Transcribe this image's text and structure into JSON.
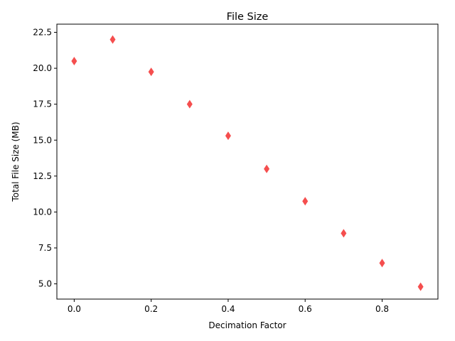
{
  "chart_data": {
    "type": "scatter",
    "title": "File Size",
    "xlabel": "Decimation Factor",
    "ylabel": "Total File Size (MB)",
    "x": [
      0.0,
      0.1,
      0.2,
      0.3,
      0.4,
      0.5,
      0.6,
      0.7,
      0.8,
      0.9
    ],
    "y": [
      20.5,
      22.0,
      19.75,
      17.5,
      15.3,
      13.0,
      10.75,
      8.52,
      6.45,
      4.8
    ],
    "xlim": [
      -0.045,
      0.945
    ],
    "ylim": [
      3.94,
      23.07
    ],
    "xticks": [
      0.0,
      0.2,
      0.4,
      0.6,
      0.8
    ],
    "xtick_labels": [
      "0.0",
      "0.2",
      "0.4",
      "0.6",
      "0.8"
    ],
    "yticks": [
      5.0,
      7.5,
      10.0,
      12.5,
      15.0,
      17.5,
      20.0,
      22.5
    ],
    "ytick_labels": [
      "5.0",
      "7.5",
      "10.0",
      "12.5",
      "15.0",
      "17.5",
      "20.0",
      "22.5"
    ],
    "marker": "thin-diamond",
    "marker_color": "#f44545",
    "grid": false,
    "legend": false
  }
}
